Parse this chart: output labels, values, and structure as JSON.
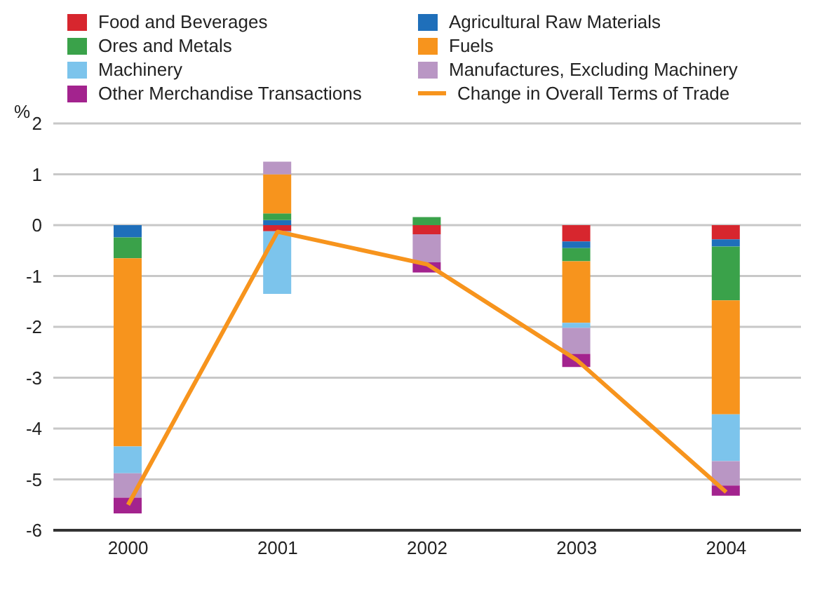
{
  "chart_data": {
    "type": "bar",
    "stacked": true,
    "ylabel": "%",
    "categories": [
      "2000",
      "2001",
      "2002",
      "2003",
      "2004"
    ],
    "ylim": [
      -6,
      2
    ],
    "yticks": [
      -6,
      -5,
      -4,
      -3,
      -2,
      -1,
      0,
      1,
      2
    ],
    "grid": "y",
    "legend": "top",
    "series": [
      {
        "name": "Food and Beverages",
        "color": "#d7262e",
        "values": [
          0,
          -0.12,
          -0.18,
          -0.32,
          -0.28
        ]
      },
      {
        "name": "Agricultural Raw Materials",
        "color": "#1f6fba",
        "values": [
          -0.24,
          0.1,
          0,
          -0.13,
          -0.14
        ]
      },
      {
        "name": "Ores and Metals",
        "color": "#3aa24a",
        "values": [
          -0.41,
          0.13,
          0.16,
          -0.26,
          -1.06
        ]
      },
      {
        "name": "Fuels",
        "color": "#f7941d",
        "values": [
          -3.7,
          0.77,
          0,
          -1.21,
          -2.24
        ]
      },
      {
        "name": "Machinery",
        "color": "#7cc4ec",
        "values": [
          -0.53,
          -1.23,
          0,
          -0.1,
          -0.92
        ]
      },
      {
        "name": "Manufactures, Excluding Machinery",
        "color": "#b996c4",
        "values": [
          -0.48,
          0.25,
          -0.55,
          -0.51,
          -0.48
        ]
      },
      {
        "name": "Other Merchandise Transactions",
        "color": "#a3238e",
        "values": [
          -0.31,
          0,
          -0.2,
          -0.26,
          -0.2
        ]
      },
      {
        "name": "Change in Overall Terms of Trade",
        "type": "line",
        "color": "#f7941d",
        "values": [
          -5.5,
          -0.13,
          -0.77,
          -2.65,
          -5.25
        ]
      }
    ]
  }
}
